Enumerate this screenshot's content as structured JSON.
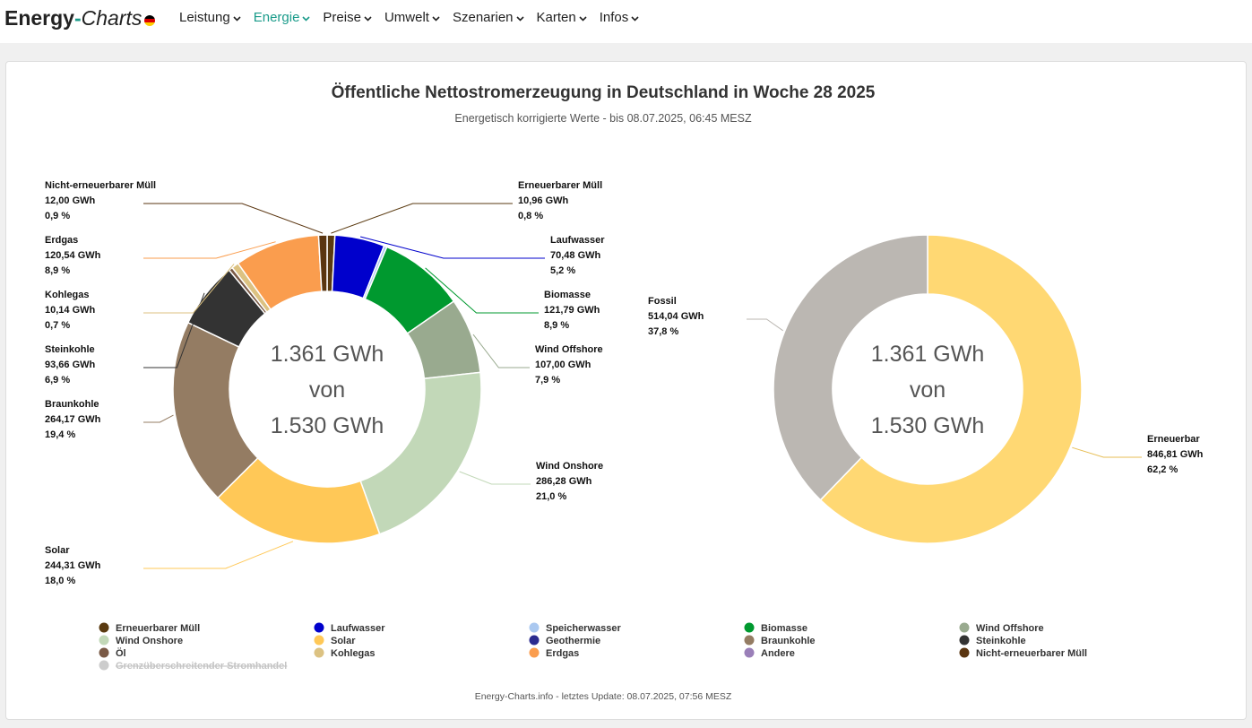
{
  "brand": {
    "part1": "Energy",
    "dash": "-",
    "part2": "Charts"
  },
  "nav": [
    {
      "label": "Leistung",
      "active": false
    },
    {
      "label": "Energie",
      "active": true
    },
    {
      "label": "Preise",
      "active": false
    },
    {
      "label": "Umwelt",
      "active": false
    },
    {
      "label": "Szenarien",
      "active": false
    },
    {
      "label": "Karten",
      "active": false
    },
    {
      "label": "Infos",
      "active": false
    }
  ],
  "chart_data": {
    "type": "pie",
    "title": "Öffentliche Nettostromerzeugung in Deutschland in Woche 28 2025",
    "subtitle": "Energetisch korrigierte Werte - bis 08.07.2025, 06:45 MESZ",
    "credits": "Energy-Charts.info - letztes Update: 08.07.2025, 07:56 MESZ",
    "center_text": [
      "1.361 GWh",
      "von",
      "1.530 GWh"
    ],
    "charts": [
      {
        "slices": [
          {
            "name": "Erneuerbarer Müll",
            "value": 10.96,
            "value_label": "10,96 GWh",
            "percent_label": "0,8 %",
            "color": "#5a3a10"
          },
          {
            "name": "Laufwasser",
            "value": 70.48,
            "value_label": "70,48 GWh",
            "percent_label": "5,2 %",
            "color": "#0000cc"
          },
          {
            "name": "Speicherwasser",
            "value": 4.2,
            "value_label": "",
            "percent_label": "",
            "color": "#aac8f0"
          },
          {
            "name": "Biomasse",
            "value": 121.79,
            "value_label": "121,79 GWh",
            "percent_label": "8,9 %",
            "color": "#00992f"
          },
          {
            "name": "Wind Offshore",
            "value": 107.0,
            "value_label": "107,00 GWh",
            "percent_label": "7,9 %",
            "color": "#99aa8f"
          },
          {
            "name": "Wind Onshore",
            "value": 286.28,
            "value_label": "286,28 GWh",
            "percent_label": "21,0 %",
            "color": "#c2d8b8"
          },
          {
            "name": "Solar",
            "value": 244.31,
            "value_label": "244,31 GWh",
            "percent_label": "18,0 %",
            "color": "#ffc857"
          },
          {
            "name": "Braunkohle",
            "value": 264.17,
            "value_label": "264,17 GWh",
            "percent_label": "19,4 %",
            "color": "#947c63"
          },
          {
            "name": "Steinkohle",
            "value": 93.66,
            "value_label": "93,66 GWh",
            "percent_label": "6,9 %",
            "color": "#333333"
          },
          {
            "name": "Öl",
            "value": 5.5,
            "value_label": "",
            "percent_label": "",
            "color": "#7a5a46"
          },
          {
            "name": "Kohlegas",
            "value": 10.14,
            "value_label": "10,14 GWh",
            "percent_label": "0,7 %",
            "color": "#dcc282"
          },
          {
            "name": "Erdgas",
            "value": 120.54,
            "value_label": "120,54 GWh",
            "percent_label": "8,9 %",
            "color": "#fa9d4e"
          },
          {
            "name": "Nicht-erneuerbarer Müll",
            "value": 12.0,
            "value_label": "12,00 GWh",
            "percent_label": "0,9 %",
            "color": "#5a3510"
          }
        ]
      },
      {
        "slices": [
          {
            "name": "Erneuerbar",
            "value": 846.81,
            "value_label": "846,81 GWh",
            "percent_label": "62,2 %",
            "color": "#ffd873"
          },
          {
            "name": "Fossil",
            "value": 514.04,
            "value_label": "514,04 GWh",
            "percent_label": "37,8 %",
            "color": "#bbb7b2"
          }
        ]
      }
    ],
    "legend": [
      {
        "name": "Erneuerbarer Müll",
        "color": "#5a3a10",
        "disabled": false
      },
      {
        "name": "Laufwasser",
        "color": "#0000cc",
        "disabled": false
      },
      {
        "name": "Speicherwasser",
        "color": "#aac8f0",
        "disabled": false
      },
      {
        "name": "Biomasse",
        "color": "#00992f",
        "disabled": false
      },
      {
        "name": "Wind Offshore",
        "color": "#99aa8f",
        "disabled": false
      },
      {
        "name": "Wind Onshore",
        "color": "#c2d8b8",
        "disabled": false
      },
      {
        "name": "Solar",
        "color": "#ffc857",
        "disabled": false
      },
      {
        "name": "Geothermie",
        "color": "#2b2b8f",
        "disabled": false
      },
      {
        "name": "Braunkohle",
        "color": "#947c63",
        "disabled": false
      },
      {
        "name": "Steinkohle",
        "color": "#333333",
        "disabled": false
      },
      {
        "name": "Öl",
        "color": "#7a5a46",
        "disabled": false
      },
      {
        "name": "Kohlegas",
        "color": "#dcc282",
        "disabled": false
      },
      {
        "name": "Erdgas",
        "color": "#fa9d4e",
        "disabled": false
      },
      {
        "name": "Andere",
        "color": "#9a7fb8",
        "disabled": false
      },
      {
        "name": "Nicht-erneuerbarer Müll",
        "color": "#5a3510",
        "disabled": false
      },
      {
        "name": "Grenzüberschreitender Stromhandel",
        "color": "#cccccc",
        "disabled": true
      }
    ]
  }
}
